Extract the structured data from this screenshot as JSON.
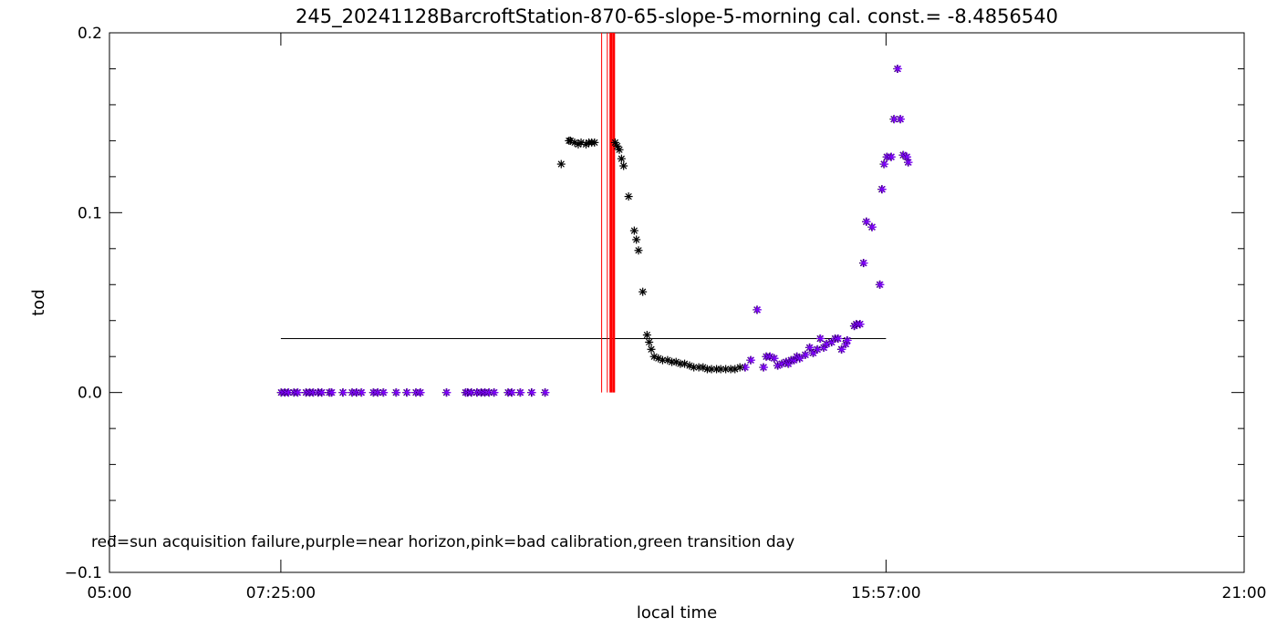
{
  "chart_data": {
    "type": "scatter",
    "title": "245_20241128BarcroftStation-870-65-slope-5-morning cal. const.= -8.4856540",
    "xlabel": "local time",
    "ylabel": "tod",
    "x_unit": "hours (local time)",
    "xlim": [
      5.0,
      21.0
    ],
    "ylim": [
      -0.1,
      0.2
    ],
    "x_ticks": [
      {
        "value": 5.0,
        "label": "05:00"
      },
      {
        "value": 7.4167,
        "label": "07:25:00"
      },
      {
        "value": 15.95,
        "label": "15:57:00"
      },
      {
        "value": 21.0,
        "label": "21:00"
      }
    ],
    "y_ticks": [
      {
        "value": -0.1,
        "label": "−0.1"
      },
      {
        "value": 0.0,
        "label": "0.0"
      },
      {
        "value": 0.1,
        "label": "0.1"
      },
      {
        "value": 0.2,
        "label": "0.2"
      }
    ],
    "legend_text": "red=sun acquisition failure,purple=near horizon,pink=bad calibration,green transition day",
    "reference_line": {
      "y": 0.03,
      "x_start": 7.4167,
      "x_end": 15.95
    },
    "vertical_lines": [
      {
        "x": 11.94,
        "color": "#ff0000",
        "weight": "thin"
      },
      {
        "x": 12.02,
        "color": "#ff0000",
        "weight": "thin"
      },
      {
        "x": 12.07,
        "color": "#ff0000",
        "weight": "thick"
      },
      {
        "x": 12.11,
        "color": "#ff0000",
        "weight": "thick"
      }
    ],
    "colors": {
      "normal": "#000000",
      "near_horizon": "#7f00ff",
      "sun_failure": "#ff0000"
    },
    "series": [
      {
        "category": "near horizon",
        "color": "#7f00ff",
        "x": [
          7.42,
          7.47,
          7.52,
          7.6,
          7.65,
          7.77,
          7.82,
          7.87,
          7.94,
          7.99,
          8.1,
          8.13,
          8.29,
          8.42,
          8.48,
          8.55,
          8.72,
          8.78,
          8.86,
          9.04,
          9.19,
          9.32,
          9.38,
          9.75,
          10.02,
          10.05,
          10.1,
          10.18,
          10.24,
          10.29,
          10.35,
          10.42,
          10.62,
          10.67,
          10.79,
          10.95,
          11.14,
          13.96,
          14.04,
          14.13,
          14.22,
          14.26,
          14.31,
          14.37,
          14.42,
          14.48,
          14.54,
          14.57,
          14.61,
          14.65,
          14.69,
          14.73,
          14.81,
          14.87,
          14.92,
          14.98,
          15.02,
          15.07,
          15.11,
          15.18,
          15.23,
          15.27,
          15.32,
          15.38,
          15.4,
          15.5,
          15.53,
          15.58,
          15.63,
          15.67,
          15.75,
          15.86,
          15.89,
          15.92,
          15.96,
          16.02,
          16.06,
          16.11,
          16.15,
          16.19,
          16.24,
          16.26
        ],
        "y": [
          0,
          0,
          0,
          0,
          0,
          0,
          0,
          0,
          0,
          0,
          0,
          0,
          0,
          0,
          0,
          0,
          0,
          0,
          0,
          0,
          0,
          0,
          0,
          0,
          0,
          0,
          0,
          0,
          0,
          0,
          0,
          0,
          0,
          0,
          0,
          0,
          0,
          0.014,
          0.018,
          0.046,
          0.014,
          0.02,
          0.02,
          0.019,
          0.015,
          0.016,
          0.017,
          0.016,
          0.018,
          0.018,
          0.02,
          0.019,
          0.021,
          0.025,
          0.022,
          0.024,
          0.03,
          0.025,
          0.027,
          0.028,
          0.03,
          0.03,
          0.024,
          0.027,
          0.029,
          0.037,
          0.038,
          0.038,
          0.072,
          0.095,
          0.092,
          0.06,
          0.113,
          0.127,
          0.131,
          0.131,
          0.152,
          0.18,
          0.152,
          0.132,
          0.131,
          0.128
        ]
      },
      {
        "category": "normal",
        "color": "#000000",
        "x": [
          11.37,
          11.48,
          11.5,
          11.56,
          11.61,
          11.65,
          11.72,
          11.76,
          11.8,
          11.84,
          12.13,
          12.16,
          12.19,
          12.22,
          12.25,
          12.32,
          12.4,
          12.43,
          12.46,
          12.52,
          12.58,
          12.61,
          12.64,
          12.68,
          12.74,
          12.8,
          12.87,
          12.93,
          12.99,
          13.05,
          13.11,
          13.18,
          13.24,
          13.31,
          13.37,
          13.43,
          13.49,
          13.56,
          13.62,
          13.69,
          13.76,
          13.82,
          13.89
        ],
        "y": [
          0.127,
          0.14,
          0.14,
          0.139,
          0.138,
          0.139,
          0.138,
          0.139,
          0.139,
          0.139,
          0.139,
          0.137,
          0.135,
          0.13,
          0.126,
          0.109,
          0.09,
          0.085,
          0.079,
          0.056,
          0.032,
          0.028,
          0.024,
          0.02,
          0.019,
          0.018,
          0.018,
          0.017,
          0.017,
          0.016,
          0.016,
          0.015,
          0.014,
          0.014,
          0.014,
          0.013,
          0.013,
          0.013,
          0.013,
          0.013,
          0.013,
          0.013,
          0.014
        ]
      }
    ]
  }
}
